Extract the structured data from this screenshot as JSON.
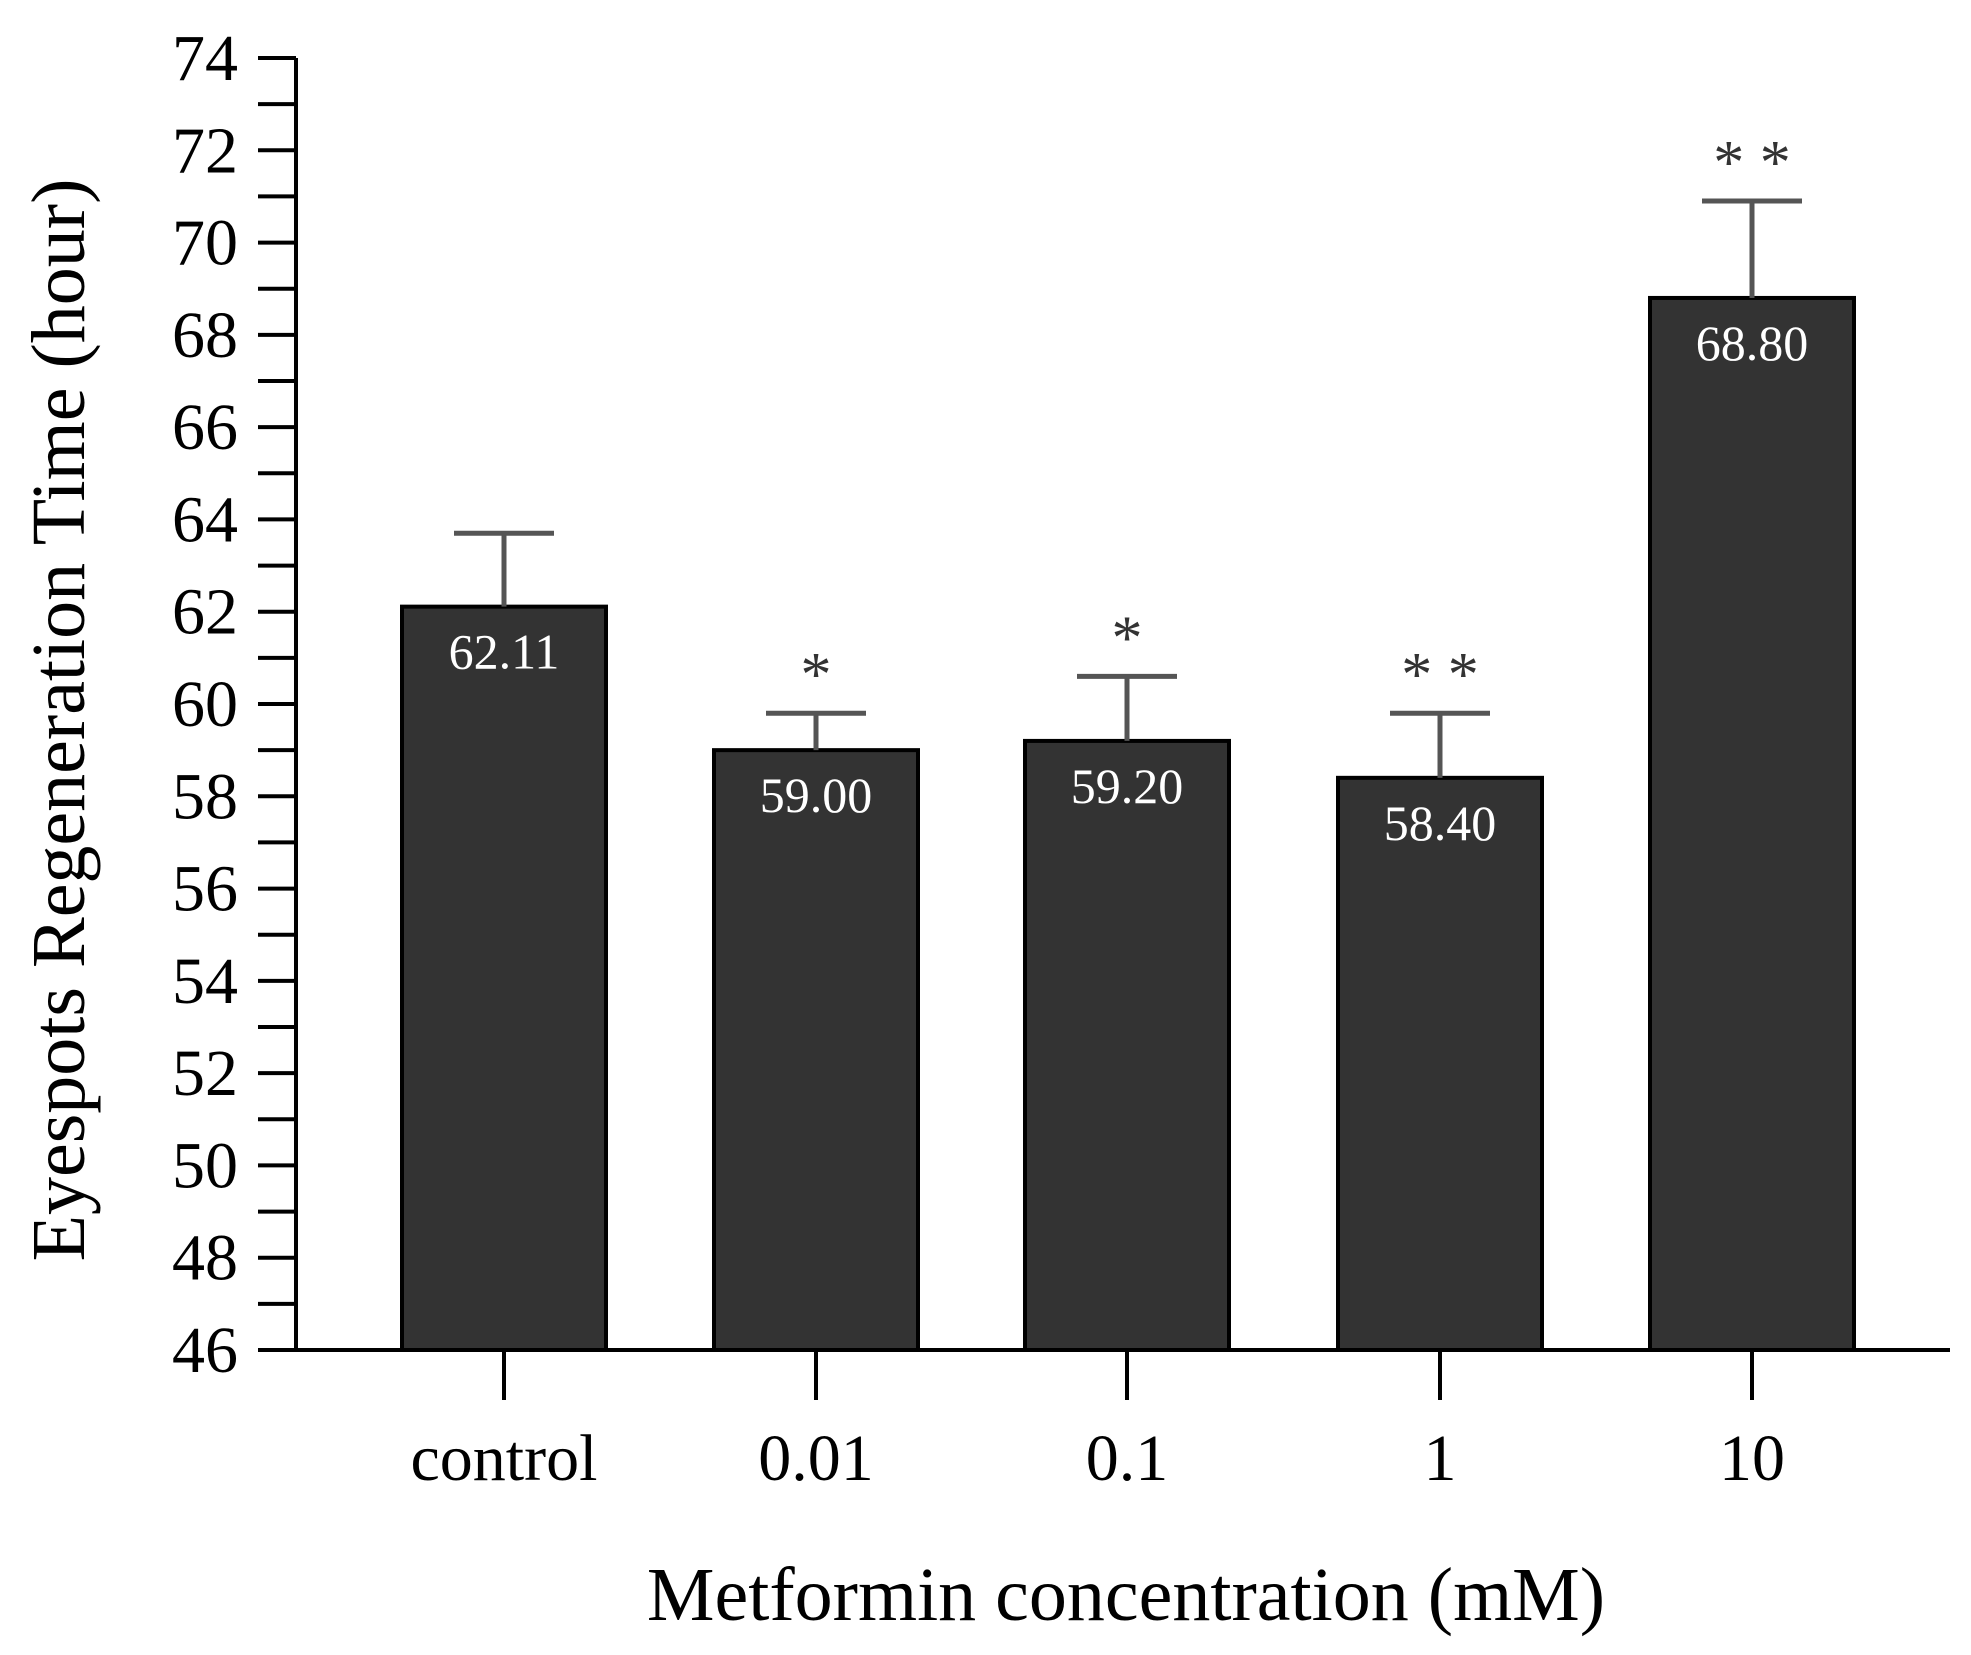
{
  "chart_data": {
    "type": "bar",
    "title": "",
    "xlabel": "Metformin concentration (mM)",
    "ylabel": "Eyespots Regeneration Time (hour)",
    "ylim": [
      46,
      74
    ],
    "yticks": [
      46,
      48,
      50,
      52,
      54,
      56,
      58,
      60,
      62,
      64,
      66,
      68,
      70,
      72,
      74
    ],
    "categories": [
      "control",
      "0.01",
      "0.1",
      "1",
      "10"
    ],
    "values": [
      62.11,
      59.0,
      59.2,
      58.4,
      68.8
    ],
    "value_labels": [
      "62.11",
      "59.00",
      "59.20",
      "58.40",
      "68.80"
    ],
    "error_upper": [
      63.7,
      59.8,
      60.6,
      59.8,
      70.9
    ],
    "significance": [
      "",
      "*",
      "*",
      "* *",
      "* *"
    ],
    "colors": {
      "bar": "#333333",
      "bar_edge": "#000000",
      "error": "#555555",
      "axis": "#000000"
    },
    "grid": false,
    "legend": "none"
  }
}
